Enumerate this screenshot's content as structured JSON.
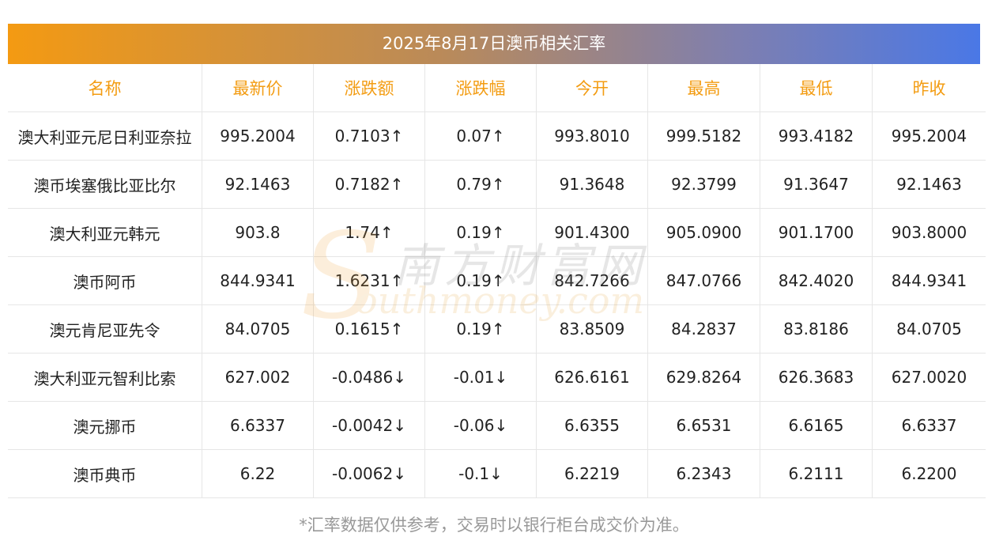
{
  "title": "2025年8月17日澳币相关汇率",
  "headers": [
    "名称",
    "最新价",
    "涨跌额",
    "涨跌幅",
    "今开",
    "最高",
    "最低",
    "昨收"
  ],
  "rows": [
    {
      "name": "澳大利亚元尼日利亚奈拉",
      "latest": "995.2004",
      "change": "0.7103↑",
      "pct": "0.07↑",
      "open": "993.8010",
      "high": "999.5182",
      "low": "993.4182",
      "prev": "995.2004",
      "dir": "up"
    },
    {
      "name": "澳币埃塞俄比亚比尔",
      "latest": "92.1463",
      "change": "0.7182↑",
      "pct": "0.79↑",
      "open": "91.3648",
      "high": "92.3799",
      "low": "91.3647",
      "prev": "92.1463",
      "dir": "up"
    },
    {
      "name": "澳大利亚元韩元",
      "latest": "903.8",
      "change": "1.74↑",
      "pct": "0.19↑",
      "open": "901.4300",
      "high": "905.0900",
      "low": "901.1700",
      "prev": "903.8000",
      "dir": "up"
    },
    {
      "name": "澳币阿币",
      "latest": "844.9341",
      "change": "1.6231↑",
      "pct": "0.19↑",
      "open": "842.7266",
      "high": "847.0766",
      "low": "842.4020",
      "prev": "844.9341",
      "dir": "up"
    },
    {
      "name": "澳元肯尼亚先令",
      "latest": "84.0705",
      "change": "0.1615↑",
      "pct": "0.19↑",
      "open": "83.8509",
      "high": "84.2837",
      "low": "83.8186",
      "prev": "84.0705",
      "dir": "up"
    },
    {
      "name": "澳大利亚元智利比索",
      "latest": "627.002",
      "change": "-0.0486↓",
      "pct": "-0.01↓",
      "open": "626.6161",
      "high": "629.8264",
      "low": "626.3683",
      "prev": "627.0020",
      "dir": "down"
    },
    {
      "name": "澳元挪币",
      "latest": "6.6337",
      "change": "-0.0042↓",
      "pct": "-0.06↓",
      "open": "6.6355",
      "high": "6.6531",
      "low": "6.6165",
      "prev": "6.6337",
      "dir": "down"
    },
    {
      "name": "澳币典币",
      "latest": "6.22",
      "change": "-0.0062↓",
      "pct": "-0.1↓",
      "open": "6.2219",
      "high": "6.2343",
      "low": "6.2111",
      "prev": "6.2200",
      "dir": "down"
    }
  ],
  "footnote": "*汇率数据仅供参考，交易时以银行柜台成交价为准。",
  "watermark": {
    "cn": "南方财富网",
    "en": "outhmoney.com",
    "initial": "S"
  },
  "colors": {
    "up": "#e60012",
    "down": "#118c11",
    "header": "#f39c12",
    "title_gradient_start": "#f49a12",
    "title_gradient_end": "#4a78e6"
  }
}
